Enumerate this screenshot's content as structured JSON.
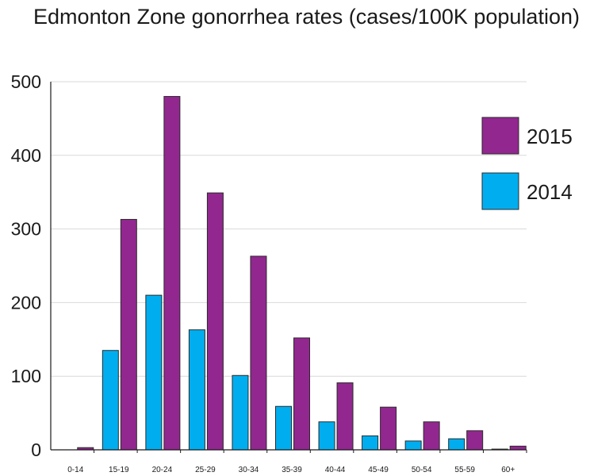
{
  "chart_data": {
    "type": "bar",
    "title": "Edmonton Zone gonorrhea rates (cases/100K population)",
    "xlabel": "",
    "ylabel": "",
    "ylim": [
      0,
      500
    ],
    "yticks": [
      0,
      100,
      200,
      300,
      400,
      500
    ],
    "grid": true,
    "legend_position": "top-right",
    "categories": [
      "0-14",
      "15-19",
      "20-24",
      "25-29",
      "30-34",
      "35-39",
      "40-44",
      "45-49",
      "50-54",
      "55-59",
      "60+"
    ],
    "series": [
      {
        "name": "2014",
        "color": "#00aeef",
        "values": [
          0,
          135,
          210,
          163,
          101,
          59,
          38,
          19,
          12,
          15,
          1
        ]
      },
      {
        "name": "2015",
        "color": "#92278f",
        "values": [
          3,
          313,
          480,
          349,
          263,
          152,
          91,
          58,
          38,
          26,
          5
        ]
      }
    ],
    "legend_order": [
      "2015",
      "2014"
    ]
  }
}
